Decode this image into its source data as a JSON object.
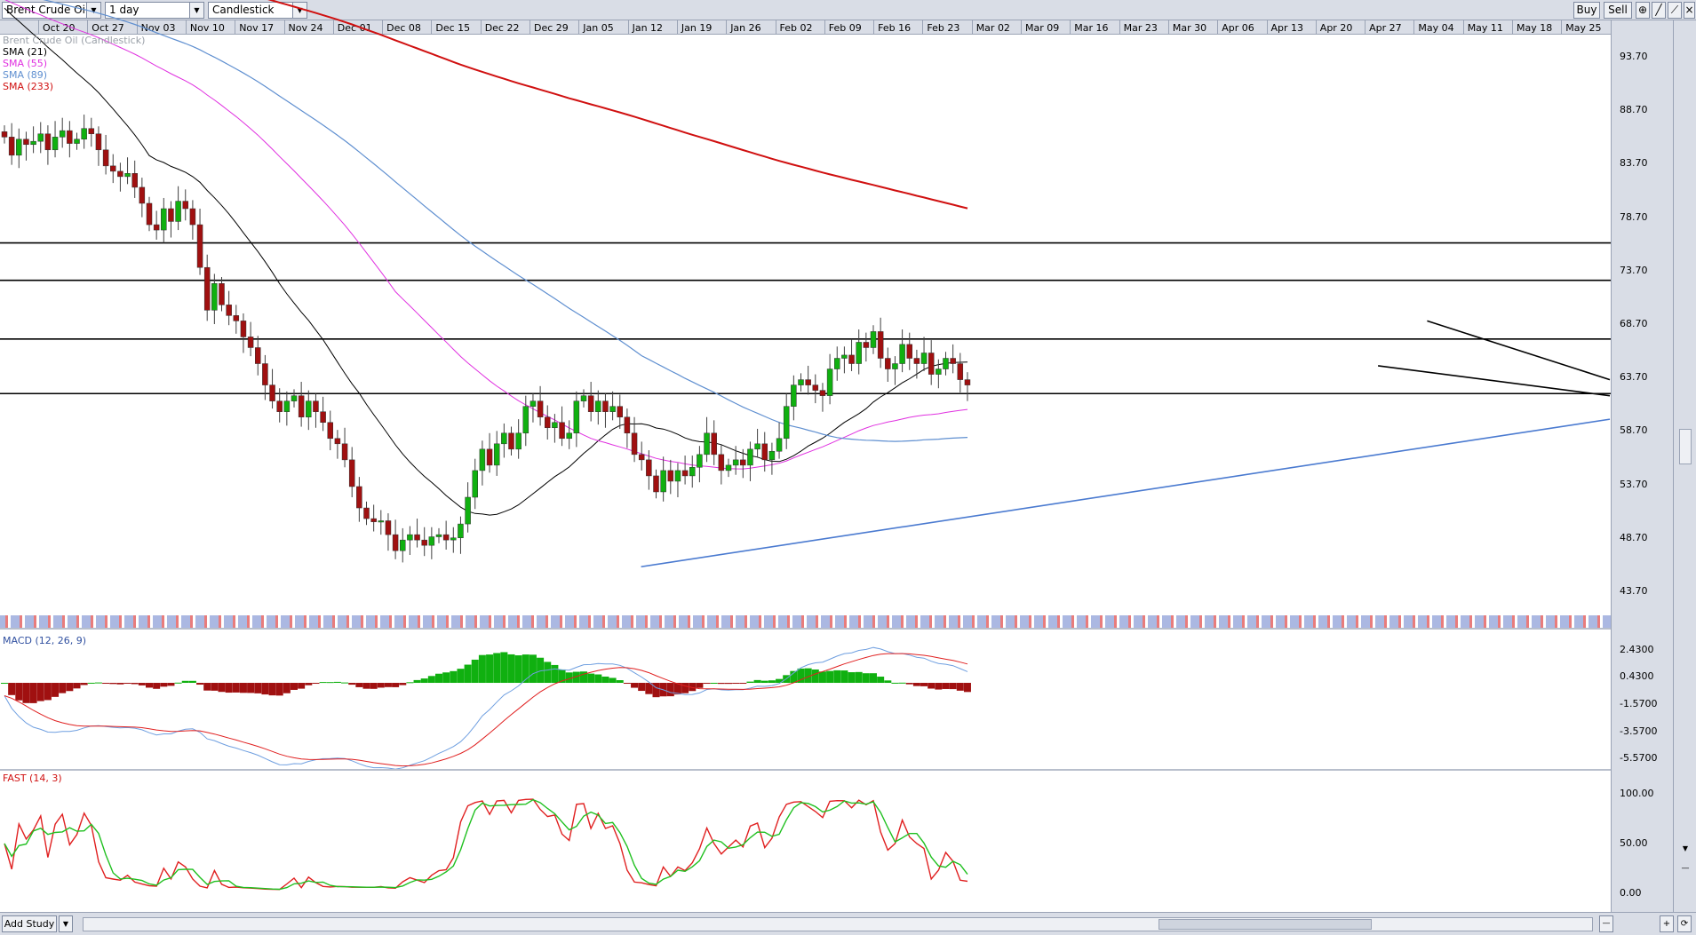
{
  "toolbar": {
    "instrument": "Brent Crude Oil",
    "timeframe": "1 day",
    "chart_type": "Candlestick",
    "buy_label": "Buy",
    "sell_label": "Sell"
  },
  "legend": {
    "title": "Brent Crude Oil (Candlestick)",
    "sma21": "SMA (21)",
    "sma55": "SMA (55)",
    "sma89": "SMA (89)",
    "sma233": "SMA (233)"
  },
  "colors": {
    "up_candle": "#10b010",
    "down_candle": "#a01010",
    "sma21": "#000000",
    "sma55": "#e030e0",
    "sma89": "#5f8fd0",
    "sma233": "#d01010",
    "macd_line": "#6f9fe0",
    "signal_line": "#e02020",
    "fast_k": "#e02020",
    "fast_d": "#20c020"
  },
  "date_labels": [
    "Oct 20",
    "Oct 27",
    "Nov 03",
    "Nov 10",
    "Nov 17",
    "Nov 24",
    "Dec 01",
    "Dec 08",
    "Dec 15",
    "Dec 22",
    "Dec 29",
    "Jan 05",
    "Jan 12",
    "Jan 19",
    "Jan 26",
    "Feb 02",
    "Feb 09",
    "Feb 16",
    "Feb 23",
    "Mar 02",
    "Mar 09",
    "Mar 16",
    "Mar 23",
    "Mar 30",
    "Apr 06",
    "Apr 13",
    "Apr 20",
    "Apr 27",
    "May 04",
    "May 11",
    "May 18",
    "May 25"
  ],
  "price_labels": [
    "93.70",
    "88.70",
    "83.70",
    "78.70",
    "73.70",
    "68.70",
    "63.70",
    "58.70",
    "53.70",
    "48.70",
    "43.70"
  ],
  "macd_pane": {
    "title": "MACD (12, 26, 9)",
    "labels": [
      "2.4300",
      "0.4300",
      "-1.5700",
      "-3.5700",
      "-5.5700"
    ]
  },
  "fast_pane": {
    "title": "FAST (14, 3)",
    "labels": [
      "100.00",
      "50.00",
      "0.00"
    ]
  },
  "bottom": {
    "add_study": "Add Study"
  },
  "chart_data": [
    {
      "type": "candlestick",
      "title": "Brent Crude Oil (Candlestick)",
      "ylim": [
        41.7,
        95.7
      ],
      "closes": [
        86.2,
        84.5,
        86.0,
        85.5,
        85.8,
        86.5,
        85.0,
        86.2,
        86.8,
        85.6,
        86.0,
        87.0,
        86.5,
        85.0,
        83.5,
        83.0,
        82.5,
        82.8,
        81.5,
        80.0,
        78.0,
        77.5,
        79.5,
        78.3,
        80.2,
        79.5,
        78.0,
        74.0,
        70.0,
        72.5,
        70.5,
        69.5,
        69.0,
        67.5,
        66.5,
        65.0,
        63.0,
        61.5,
        60.5,
        61.5,
        62.0,
        60.0,
        61.5,
        60.5,
        59.5,
        58.0,
        57.5,
        56.0,
        53.5,
        51.5,
        50.5,
        50.2,
        50.3,
        49.0,
        47.5,
        48.5,
        49.0,
        48.5,
        48.0,
        48.8,
        49.0,
        48.5,
        48.7,
        50.0,
        52.5,
        55.0,
        57.0,
        55.5,
        57.5,
        58.5,
        57.0,
        58.5,
        61.0,
        61.5,
        60.0,
        59.0,
        59.5,
        58.0,
        58.5,
        61.5,
        62.0,
        60.5,
        61.5,
        60.5,
        61.0,
        60.0,
        58.5,
        56.5,
        56.0,
        54.5,
        53.0,
        55.0,
        54.0,
        55.0,
        54.5,
        55.3,
        56.5,
        58.5,
        56.5,
        55.0,
        55.5,
        56.0,
        55.5,
        57.0,
        57.5,
        56.0,
        56.8,
        58.0,
        61.0,
        63.0,
        63.5,
        63.0,
        62.5,
        62.0,
        64.5,
        65.5,
        65.8,
        65.0,
        67.0,
        66.5,
        68.0,
        65.5,
        64.5,
        65.0,
        66.8,
        65.5,
        65.0,
        66.0,
        64.0,
        64.5,
        65.5,
        65.0,
        63.5,
        63.0
      ],
      "support_resistance": [
        76.3,
        72.8,
        67.3,
        62.2
      ],
      "trendlines": [
        {
          "from": [
            46.0,
            "Jan 12"
          ],
          "to": [
            59.8,
            "May 29"
          ]
        },
        {
          "from": [
            69.0,
            "May 04"
          ],
          "to": [
            63.5,
            "May 29"
          ]
        },
        {
          "from": [
            64.8,
            "Apr 27"
          ],
          "to": [
            62.0,
            "May 29"
          ]
        }
      ]
    },
    {
      "type": "bar+line",
      "title": "MACD (12, 26, 9)",
      "ylim": [
        -6.2,
        3.2
      ]
    },
    {
      "type": "line",
      "title": "FAST (14, 3)",
      "ylim": [
        -8,
        108
      ]
    }
  ]
}
